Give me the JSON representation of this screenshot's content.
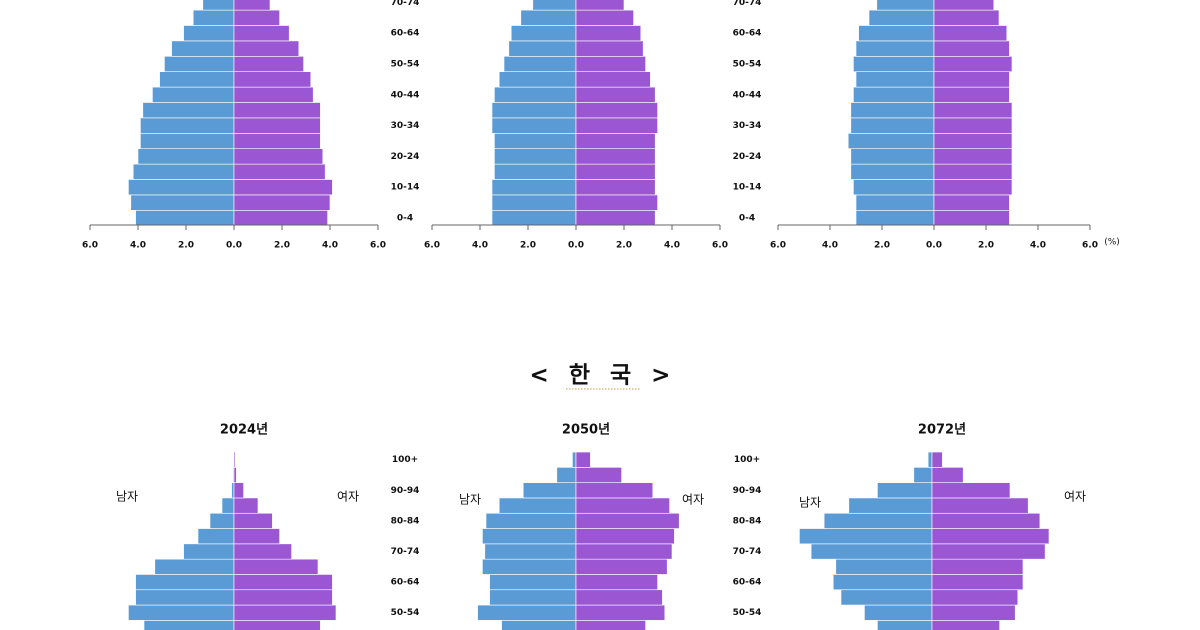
{
  "section_title": "< 한 국 >",
  "chart_data": [
    {
      "type": "pyramid",
      "series": [
        {
          "color": "#5b9bd5",
          "values": [
            4.1,
            4.3,
            4.4,
            4.2,
            4.0,
            3.9,
            3.9,
            3.8,
            3.4,
            3.1,
            2.9,
            2.6,
            2.1,
            1.7,
            1.3
          ]
        },
        {
          "color": "#9b57d3",
          "values": [
            3.9,
            4.0,
            4.1,
            3.8,
            3.7,
            3.6,
            3.6,
            3.6,
            3.3,
            3.2,
            2.9,
            2.7,
            2.3,
            1.9,
            1.5
          ]
        }
      ],
      "xlim": [
        -6,
        6
      ],
      "xticks": [
        {
          "value": -6,
          "label": "6.0"
        },
        {
          "value": -4,
          "label": "4.0"
        },
        {
          "value": -2,
          "label": "2.0"
        },
        {
          "value": 0,
          "label": "0.0"
        },
        {
          "value": 2,
          "label": "2.0"
        },
        {
          "value": 4,
          "label": "4.0"
        },
        {
          "value": 6,
          "label": "6.0"
        }
      ]
    },
    {
      "type": "pyramid",
      "categories": [
        "0-4",
        null,
        "10-14",
        null,
        "20-24",
        null,
        "30-34",
        null,
        "40-44",
        null,
        "50-54",
        null,
        "60-64",
        null,
        "70-74"
      ],
      "series": [
        {
          "color": "#5b9bd5",
          "values": [
            3.5,
            3.5,
            3.5,
            3.4,
            3.4,
            3.4,
            3.5,
            3.5,
            3.4,
            3.2,
            3.0,
            2.8,
            2.7,
            2.3,
            1.8
          ]
        },
        {
          "color": "#9b57d3",
          "values": [
            3.3,
            3.4,
            3.3,
            3.3,
            3.3,
            3.3,
            3.4,
            3.4,
            3.3,
            3.1,
            2.9,
            2.8,
            2.7,
            2.4,
            2.0
          ]
        }
      ],
      "xlim": [
        -6,
        6
      ],
      "xticks": [
        {
          "value": -6,
          "label": "6.0"
        },
        {
          "value": -4,
          "label": "4.0"
        },
        {
          "value": -2,
          "label": "2.0"
        },
        {
          "value": 0,
          "label": "0.0"
        },
        {
          "value": 2,
          "label": "2.0"
        },
        {
          "value": 4,
          "label": "4.0"
        },
        {
          "value": 6,
          "label": "6.0"
        }
      ]
    },
    {
      "type": "pyramid",
      "xlabel": "(%)",
      "categories": [
        "0-4",
        null,
        "10-14",
        null,
        "20-24",
        null,
        "30-34",
        null,
        "40-44",
        null,
        "50-54",
        null,
        "60-64",
        null,
        "70-74"
      ],
      "series": [
        {
          "color": "#5b9bd5",
          "values": [
            3.0,
            3.0,
            3.1,
            3.2,
            3.2,
            3.3,
            3.2,
            3.2,
            3.1,
            3.0,
            3.1,
            3.0,
            2.9,
            2.5,
            2.2
          ]
        },
        {
          "color": "#9b57d3",
          "values": [
            2.9,
            2.9,
            3.0,
            3.0,
            3.0,
            3.0,
            3.0,
            3.0,
            2.9,
            2.9,
            3.0,
            2.9,
            2.8,
            2.5,
            2.3
          ]
        }
      ],
      "xlim": [
        -6,
        6
      ],
      "xticks": [
        {
          "value": -6,
          "label": "6.0"
        },
        {
          "value": -4,
          "label": "4.0"
        },
        {
          "value": -2,
          "label": "2.0"
        },
        {
          "value": 0,
          "label": "0.0"
        },
        {
          "value": 2,
          "label": "2.0"
        },
        {
          "value": 4,
          "label": "4.0"
        },
        {
          "value": 6,
          "label": "6.0"
        }
      ]
    },
    {
      "type": "pyramid",
      "title": "2024년",
      "series": [
        {
          "name": "남자",
          "color": "#5b9bd5",
          "values": [
            3.75,
            4.4,
            4.1,
            4.1,
            3.3,
            2.1,
            1.5,
            1.0,
            0.5,
            0.1,
            0.04,
            0.02
          ]
        },
        {
          "name": "여자",
          "color": "#9b57d3",
          "values": [
            3.6,
            4.25,
            4.1,
            4.1,
            3.5,
            2.4,
            1.9,
            1.6,
            1.0,
            0.4,
            0.1,
            0.05
          ]
        }
      ],
      "xlim": [
        -6,
        6
      ]
    },
    {
      "type": "pyramid",
      "title": "2050년",
      "categories": [
        null,
        "50-54",
        null,
        "60-64",
        null,
        "70-74",
        null,
        "80-84",
        null,
        "90-94",
        null,
        "100+"
      ],
      "series": [
        {
          "name": "남자",
          "color": "#5b9bd5",
          "values": [
            3.1,
            4.1,
            3.6,
            3.6,
            3.9,
            3.8,
            3.9,
            3.75,
            3.2,
            2.2,
            0.8,
            0.15
          ]
        },
        {
          "name": "여자",
          "color": "#9b57d3",
          "values": [
            2.9,
            3.7,
            3.6,
            3.4,
            3.8,
            4.0,
            4.1,
            4.3,
            3.9,
            3.2,
            1.9,
            0.6
          ]
        }
      ],
      "xlim": [
        -6,
        6
      ]
    },
    {
      "type": "pyramid",
      "title": "2072년",
      "categories": [
        null,
        "50-54",
        null,
        "60-64",
        null,
        "70-74",
        null,
        "80-84",
        null,
        "90-94",
        null,
        "100+"
      ],
      "series": [
        {
          "name": "남자",
          "color": "#5b9bd5",
          "values": [
            2.1,
            2.6,
            3.5,
            3.8,
            3.7,
            4.65,
            5.1,
            4.15,
            3.2,
            2.1,
            0.7,
            0.15
          ]
        },
        {
          "name": "여자",
          "color": "#9b57d3",
          "values": [
            2.6,
            3.2,
            3.3,
            3.5,
            3.5,
            4.35,
            4.5,
            4.15,
            3.7,
            3.0,
            1.2,
            0.4
          ]
        }
      ],
      "xlim": [
        -6,
        6
      ]
    }
  ]
}
